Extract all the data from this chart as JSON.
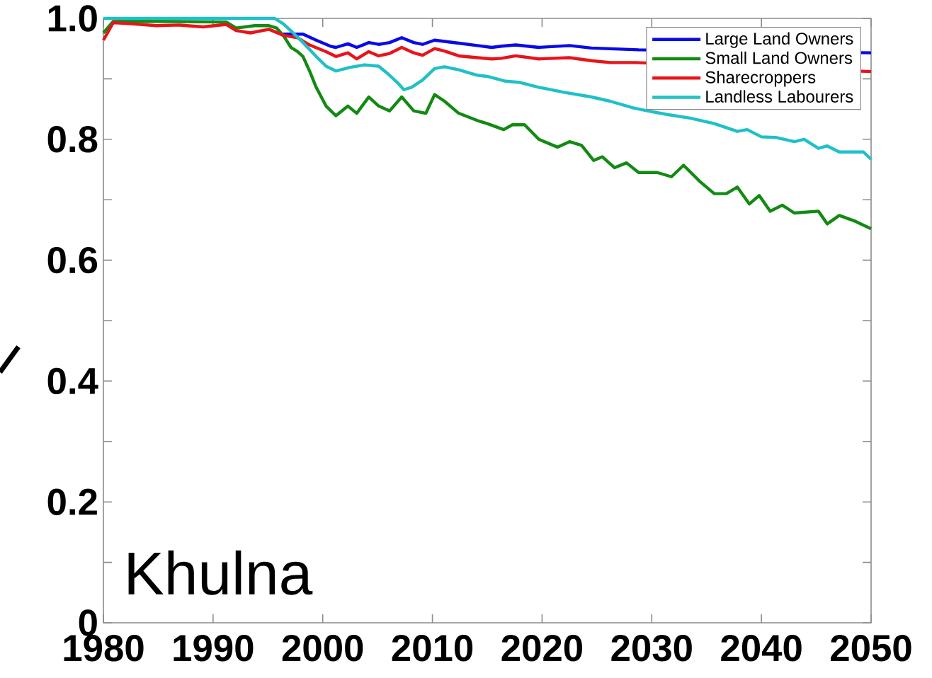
{
  "chart_data": {
    "type": "line",
    "annotations": [
      "Khulna"
    ],
    "xlim": [
      1980,
      2050
    ],
    "xticks": [
      1980,
      1990,
      2000,
      2010,
      2020,
      2030,
      2040,
      2050
    ],
    "ylim": [
      0,
      1
    ],
    "yticks": [
      0,
      {
        "value": 0.1,
        "label": null
      },
      0.2,
      {
        "value": 0.3,
        "label": null
      },
      0.4,
      {
        "value": 0.5,
        "label": null
      },
      0.6,
      {
        "value": 0.7,
        "label": null
      },
      0.8,
      {
        "value": 0.9,
        "label": null
      },
      {
        "value": 1,
        "label": "1.0"
      }
    ],
    "legend": "top right",
    "series": [
      {
        "name": "Large Land Owners",
        "color": "#0a0ae6",
        "x": [
          1996.4,
          1998.2,
          1999.4,
          2000.7,
          2001.2,
          2002.3,
          2003.1,
          2004.2,
          2005.1,
          2006.1,
          2007.2,
          2008.3,
          2009.1,
          2010.2,
          2011.1,
          2012.4,
          2014.1,
          2015.4,
          2016.3,
          2017.6,
          2019.7,
          2022.5,
          2024.5,
          2028.8,
          2050
        ],
        "values": [
          0.974,
          0.974,
          0.964,
          0.954,
          0.952,
          0.958,
          0.952,
          0.96,
          0.957,
          0.96,
          0.968,
          0.96,
          0.957,
          0.964,
          0.962,
          0.959,
          0.955,
          0.952,
          0.954,
          0.956,
          0.952,
          0.955,
          0.951,
          0.948,
          0.943
        ]
      },
      {
        "name": "Small Land Owners",
        "color": "#138a13",
        "x": [
          1980,
          1980.9,
          1985,
          1991.2,
          1992.1,
          1993.8,
          1995.1,
          1995.8,
          1996.4,
          1997.1,
          1997.7,
          1998.2,
          1998.8,
          1999.4,
          2000.3,
          2001.2,
          2002.3,
          2003.1,
          2004.2,
          2005.1,
          2006.1,
          2007.2,
          2008.3,
          2009.4,
          2010.2,
          2011.1,
          2012.4,
          2014.1,
          2015.0,
          2016.5,
          2017.3,
          2018.4,
          2019.7,
          2021.4,
          2022.5,
          2023.6,
          2024.7,
          2025.5,
          2026.6,
          2027.7,
          2028.8,
          2030.5,
          2031.8,
          2032.9,
          2034.4,
          2035.7,
          2036.8,
          2037.8,
          2038.9,
          2039.8,
          2040.8,
          2041.9,
          2043.0,
          2045.2,
          2046.0,
          2047.1,
          2048.6,
          2050
        ],
        "values": [
          0.976,
          0.995,
          0.995,
          0.994,
          0.984,
          0.988,
          0.988,
          0.984,
          0.972,
          0.952,
          0.945,
          0.937,
          0.913,
          0.886,
          0.855,
          0.839,
          0.855,
          0.843,
          0.87,
          0.855,
          0.847,
          0.87,
          0.847,
          0.843,
          0.874,
          0.863,
          0.843,
          0.831,
          0.826,
          0.816,
          0.824,
          0.824,
          0.8,
          0.787,
          0.796,
          0.79,
          0.765,
          0.771,
          0.753,
          0.761,
          0.745,
          0.745,
          0.738,
          0.757,
          0.73,
          0.71,
          0.71,
          0.721,
          0.693,
          0.707,
          0.681,
          0.691,
          0.678,
          0.681,
          0.66,
          0.674,
          0.664,
          0.652
        ]
      },
      {
        "name": "Sharecroppers",
        "color": "#e8141a",
        "x": [
          1980,
          1980.9,
          1982.6,
          1984.8,
          1986.9,
          1989.1,
          1991.2,
          1992.1,
          1993.4,
          1995.1,
          1996.4,
          1997.7,
          1998.8,
          2000.3,
          2001.2,
          2002.3,
          2003.1,
          2004.2,
          2005.1,
          2006.1,
          2007.2,
          2008.3,
          2009.1,
          2010.2,
          2011.1,
          2012.4,
          2014.1,
          2015.4,
          2016.3,
          2017.6,
          2019.7,
          2022.5,
          2024.5,
          2026.2,
          2028.5,
          2050
        ],
        "values": [
          0.964,
          0.993,
          0.991,
          0.988,
          0.989,
          0.986,
          0.99,
          0.98,
          0.976,
          0.982,
          0.972,
          0.968,
          0.956,
          0.945,
          0.937,
          0.943,
          0.933,
          0.945,
          0.938,
          0.942,
          0.952,
          0.943,
          0.939,
          0.95,
          0.946,
          0.938,
          0.935,
          0.933,
          0.934,
          0.938,
          0.933,
          0.935,
          0.93,
          0.927,
          0.927,
          0.912
        ]
      },
      {
        "name": "Landless Labourers",
        "color": "#20c0c8",
        "x": [
          1980,
          1995.6,
          1996.4,
          1997.3,
          1998.2,
          1999.4,
          2000.3,
          2001.2,
          2002.5,
          2003.8,
          2005.1,
          2005.9,
          2006.8,
          2007.4,
          2008.1,
          2009.1,
          2010.2,
          2011.1,
          2012.4,
          2014.1,
          2015.0,
          2016.7,
          2018.0,
          2019.7,
          2021.9,
          2024.5,
          2026.2,
          2028.3,
          2029.6,
          2031.4,
          2033.5,
          2035.7,
          2037.8,
          2038.7,
          2040.0,
          2041.3,
          2043.0,
          2043.9,
          2045.2,
          2046.0,
          2047.1,
          2048.2,
          2049.3,
          2050
        ],
        "values": [
          1.0,
          1.0,
          0.991,
          0.976,
          0.96,
          0.937,
          0.921,
          0.913,
          0.919,
          0.923,
          0.921,
          0.909,
          0.894,
          0.882,
          0.886,
          0.898,
          0.917,
          0.92,
          0.915,
          0.906,
          0.904,
          0.896,
          0.894,
          0.886,
          0.878,
          0.87,
          0.863,
          0.852,
          0.847,
          0.841,
          0.835,
          0.826,
          0.813,
          0.816,
          0.804,
          0.803,
          0.796,
          0.8,
          0.785,
          0.789,
          0.779,
          0.779,
          0.779,
          0.767
        ]
      }
    ]
  }
}
